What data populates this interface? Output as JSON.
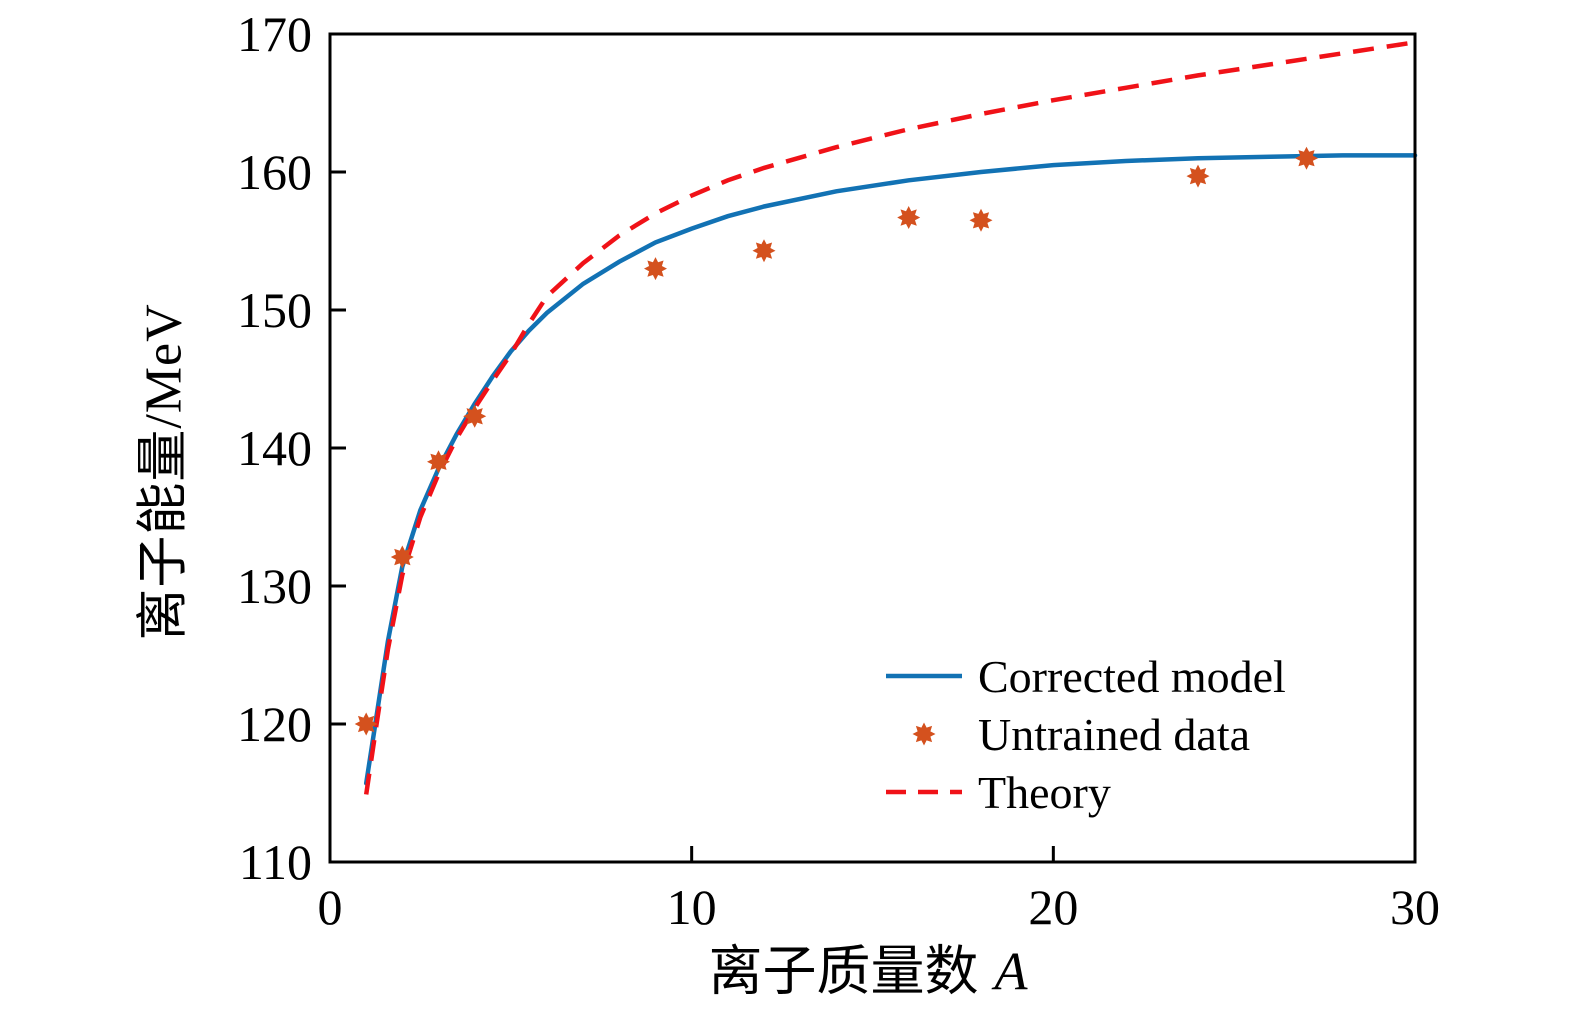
{
  "figure": {
    "background": "#ffffff",
    "text_color": "#000000",
    "axis_color": "#000000"
  },
  "axes": {
    "x": {
      "label_text": "离子质量数",
      "label_var": "A",
      "min": 0,
      "max": 30
    },
    "y": {
      "label": "离子能量/MeV",
      "min": 110,
      "max": 170
    }
  },
  "legend": {
    "items": [
      {
        "label": "Corrected model",
        "sample": "solid-line",
        "color": "#1272b4"
      },
      {
        "label": "Untrained data",
        "sample": "star-marker",
        "color": "#d4511e"
      },
      {
        "label": "Theory",
        "sample": "dashed-line",
        "color": "#f01218"
      }
    ]
  },
  "chart_data": {
    "type": "line",
    "title": "",
    "xlabel": "离子质量数 A",
    "ylabel": "离子能量/MeV",
    "xlim": [
      0,
      30
    ],
    "ylim": [
      110,
      170
    ],
    "x_ticks": [
      0,
      10,
      20,
      30
    ],
    "y_ticks": [
      110,
      120,
      130,
      140,
      150,
      160,
      170
    ],
    "grid": false,
    "legend_position": "lower right",
    "series": [
      {
        "name": "Corrected model",
        "type": "line",
        "style": "solid",
        "color": "#1272b4",
        "line_width": 4.5,
        "x": [
          1,
          1.3,
          1.6,
          2,
          2.5,
          3,
          3.5,
          4,
          4.5,
          5,
          5.5,
          6,
          7,
          8,
          9,
          10,
          11,
          12,
          14,
          16,
          18,
          20,
          22,
          24,
          26,
          28,
          30
        ],
        "y": [
          115.7,
          120.8,
          126.0,
          131.4,
          135.5,
          138.5,
          141.0,
          143.2,
          145.2,
          147.0,
          148.5,
          149.8,
          151.9,
          153.5,
          154.9,
          155.9,
          156.8,
          157.5,
          158.6,
          159.4,
          160.0,
          160.5,
          160.8,
          161.0,
          161.1,
          161.2,
          161.2
        ]
      },
      {
        "name": "Untrained data",
        "type": "scatter",
        "marker": "8-point-star",
        "color": "#d4511e",
        "marker_size": 23,
        "x": [
          1,
          2,
          3,
          4,
          9,
          12,
          16,
          18,
          24,
          27
        ],
        "y": [
          120.0,
          132.1,
          139.0,
          142.3,
          153.0,
          154.3,
          156.7,
          156.5,
          159.7,
          161.0
        ]
      },
      {
        "name": "Theory",
        "type": "line",
        "style": "dashed",
        "color": "#f01218",
        "line_width": 4.5,
        "dash_pattern": [
          21,
          13
        ],
        "x": [
          1,
          1.3,
          1.6,
          2,
          2.5,
          3,
          3.5,
          4,
          4.5,
          5,
          5.5,
          6,
          7,
          8,
          9,
          10,
          11,
          12,
          14,
          16,
          18,
          20,
          22,
          24,
          26,
          28,
          30
        ],
        "y": [
          114.9,
          120.2,
          125.4,
          130.8,
          135.0,
          138.1,
          140.7,
          142.9,
          144.9,
          146.8,
          149.0,
          151.0,
          153.4,
          155.4,
          157.0,
          158.3,
          159.4,
          160.3,
          161.8,
          163.1,
          164.2,
          165.2,
          166.1,
          167.0,
          167.8,
          168.6,
          169.4
        ]
      }
    ]
  }
}
